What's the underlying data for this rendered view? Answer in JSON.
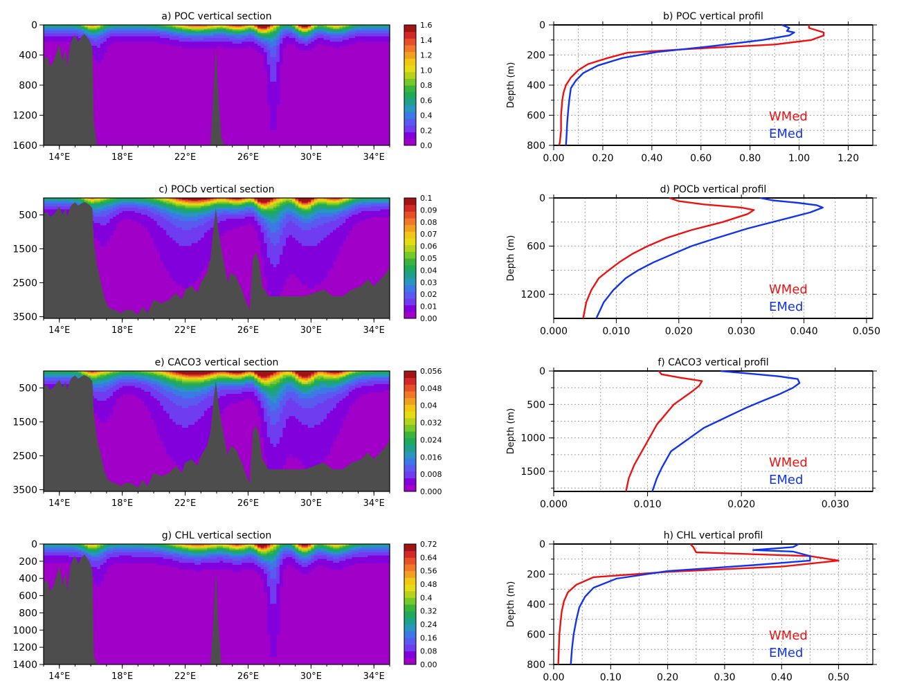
{
  "figure": {
    "colors": {
      "wmed": "#ee1111",
      "emed": "#1133ee",
      "land": "#4d4d4d",
      "grid": "#a0a0a0",
      "palette": [
        "#a000c8",
        "#8200dc",
        "#6f3cf0",
        "#5a5af0",
        "#3c78e6",
        "#2896be",
        "#1ea08c",
        "#1eaa5a",
        "#3cb43c",
        "#78c828",
        "#b4d21e",
        "#e6dc14",
        "#f0c814",
        "#f0a01e",
        "#f07828",
        "#e65028",
        "#d22828",
        "#a01414"
      ]
    }
  },
  "chart_data": [
    {
      "id": "a",
      "type": "heatmap",
      "title": "a) POC vertical section",
      "x_ticks": [
        "14°E",
        "18°E",
        "22°E",
        "26°E",
        "30°E",
        "34°E"
      ],
      "x_tick_values": [
        14,
        18,
        22,
        26,
        30,
        34
      ],
      "xlim": [
        13,
        35
      ],
      "y_ticks": [
        "0",
        "400",
        "800",
        "1200",
        "1600"
      ],
      "y_tick_values": [
        0,
        400,
        800,
        1200,
        1600
      ],
      "ylim": [
        1600,
        0
      ],
      "colorbar_ticks": [
        "1.6",
        "1.4",
        "1.2",
        "1.0",
        "0.8",
        "0.6",
        "0.4",
        "0.2",
        "0.0"
      ],
      "colorbar_range": [
        0,
        1.6
      ],
      "surface_max": 1.6
    },
    {
      "id": "b",
      "type": "line",
      "title": "b) POC vertical profil",
      "ylabel": "Depth (m)",
      "x_ticks": [
        "0.00",
        "0.20",
        "0.40",
        "0.60",
        "0.80",
        "1.00",
        "1.20"
      ],
      "x_tick_values": [
        0,
        0.2,
        0.4,
        0.6,
        0.8,
        1.0,
        1.2
      ],
      "xlim": [
        0,
        1.3
      ],
      "y_ticks": [
        "0",
        "200",
        "400",
        "600",
        "800"
      ],
      "y_tick_values": [
        0,
        200,
        400,
        600,
        800
      ],
      "ylim": [
        800,
        0
      ],
      "legend": [
        "WMed",
        "EMed"
      ],
      "series": [
        {
          "name": "WMed",
          "x": [
            1.04,
            1.04,
            1.1,
            1.1,
            1.05,
            0.9,
            0.55,
            0.3,
            0.22,
            0.14,
            0.1,
            0.07,
            0.05,
            0.04,
            0.035,
            0.03,
            0.03,
            0.025,
            0.022
          ],
          "y": [
            0,
            20,
            50,
            70,
            100,
            130,
            160,
            185,
            220,
            260,
            300,
            350,
            400,
            450,
            500,
            600,
            700,
            780,
            800
          ]
        },
        {
          "name": "EMed",
          "x": [
            0.93,
            0.96,
            0.95,
            0.98,
            0.96,
            0.85,
            0.65,
            0.42,
            0.28,
            0.18,
            0.12,
            0.09,
            0.07,
            0.065,
            0.06,
            0.055,
            0.052,
            0.05
          ],
          "y": [
            0,
            20,
            40,
            50,
            70,
            100,
            140,
            180,
            220,
            270,
            320,
            370,
            420,
            480,
            550,
            650,
            750,
            800
          ]
        }
      ]
    },
    {
      "id": "c",
      "type": "heatmap",
      "title": "c) POCb vertical section",
      "x_ticks": [
        "14°E",
        "18°E",
        "22°E",
        "26°E",
        "30°E",
        "34°E"
      ],
      "x_tick_values": [
        14,
        18,
        22,
        26,
        30,
        34
      ],
      "xlim": [
        13,
        35
      ],
      "y_ticks": [
        "500",
        "1500",
        "2500",
        "3500"
      ],
      "y_tick_values": [
        500,
        1500,
        2500,
        3500
      ],
      "ylim": [
        3550,
        0
      ],
      "colorbar_ticks": [
        "0.1",
        "0.09",
        "0.08",
        "0.07",
        "0.06",
        "0.05",
        "0.04",
        "0.03",
        "0.02",
        "0.01",
        "0.00"
      ],
      "colorbar_range": [
        0,
        0.1
      ],
      "surface_max": 0.1
    },
    {
      "id": "d",
      "type": "line",
      "title": "d) POCb vertical profil",
      "ylabel": "Depth (m)",
      "x_ticks": [
        "0.000",
        "0.010",
        "0.020",
        "0.030",
        "0.040",
        "0.050"
      ],
      "x_tick_values": [
        0,
        0.01,
        0.02,
        0.03,
        0.04,
        0.05
      ],
      "xlim": [
        0,
        0.051
      ],
      "y_ticks": [
        "0",
        "600",
        "1200"
      ],
      "y_tick_values": [
        0,
        600,
        1200
      ],
      "ylim": [
        1500,
        0
      ],
      "legend": [
        "WMed",
        "EMed"
      ],
      "series": [
        {
          "name": "WMed",
          "x": [
            0.0185,
            0.02,
            0.024,
            0.03,
            0.032,
            0.031,
            0.027,
            0.022,
            0.018,
            0.015,
            0.0125,
            0.0105,
            0.0088,
            0.0072,
            0.006,
            0.0052,
            0.0047
          ],
          "y": [
            0,
            40,
            80,
            120,
            150,
            200,
            300,
            400,
            500,
            600,
            700,
            800,
            900,
            1000,
            1150,
            1300,
            1500
          ]
        },
        {
          "name": "EMed",
          "x": [
            0.033,
            0.035,
            0.039,
            0.042,
            0.043,
            0.041,
            0.036,
            0.031,
            0.026,
            0.022,
            0.019,
            0.016,
            0.0135,
            0.0115,
            0.0095,
            0.008,
            0.0068
          ],
          "y": [
            0,
            30,
            60,
            90,
            120,
            180,
            280,
            380,
            500,
            600,
            700,
            800,
            900,
            1000,
            1150,
            1300,
            1500
          ]
        }
      ]
    },
    {
      "id": "e",
      "type": "heatmap",
      "title": "e) CACO3  vertical section",
      "x_ticks": [
        "14°E",
        "18°E",
        "22°E",
        "26°E",
        "30°E",
        "34°E"
      ],
      "x_tick_values": [
        14,
        18,
        22,
        26,
        30,
        34
      ],
      "xlim": [
        13,
        35
      ],
      "y_ticks": [
        "500",
        "1500",
        "2500",
        "3500"
      ],
      "y_tick_values": [
        500,
        1500,
        2500,
        3500
      ],
      "ylim": [
        3550,
        0
      ],
      "colorbar_ticks": [
        "0.056",
        "0.048",
        "0.04",
        "0.032",
        "0.024",
        "0.016",
        "0.008",
        "0.000"
      ],
      "colorbar_range": [
        0,
        0.056
      ],
      "surface_max": 0.056
    },
    {
      "id": "f",
      "type": "line",
      "title": "f) CACO3 vertical profil",
      "ylabel": "Depth (m)",
      "x_ticks": [
        "0.000",
        "0.010",
        "0.020",
        "0.030"
      ],
      "x_tick_values": [
        0,
        0.01,
        0.02,
        0.03
      ],
      "xlim": [
        0,
        0.034
      ],
      "y_ticks": [
        "0",
        "500",
        "1000",
        "1500"
      ],
      "y_tick_values": [
        0,
        500,
        1000,
        1500
      ],
      "ylim": [
        1800,
        0
      ],
      "legend": [
        "WMed",
        "EMed"
      ],
      "series": [
        {
          "name": "WMed",
          "x": [
            0.0112,
            0.0115,
            0.0135,
            0.0158,
            0.0155,
            0.0148,
            0.0138,
            0.0128,
            0.0122,
            0.0116,
            0.011,
            0.0104,
            0.0098,
            0.0092,
            0.0086,
            0.008,
            0.0077
          ],
          "y": [
            0,
            50,
            100,
            150,
            220,
            300,
            400,
            500,
            600,
            700,
            800,
            950,
            1100,
            1250,
            1400,
            1600,
            1800
          ]
        },
        {
          "name": "EMed",
          "x": [
            0.0178,
            0.021,
            0.024,
            0.026,
            0.0262,
            0.0255,
            0.024,
            0.0222,
            0.0205,
            0.019,
            0.0175,
            0.016,
            0.0145,
            0.0125,
            0.0115,
            0.011,
            0.0105
          ],
          "y": [
            0,
            40,
            80,
            120,
            180,
            250,
            350,
            450,
            550,
            650,
            750,
            850,
            1000,
            1200,
            1450,
            1600,
            1800
          ]
        }
      ]
    },
    {
      "id": "g",
      "type": "heatmap",
      "title": "g) CHL vertical section",
      "x_ticks": [
        "14°E",
        "18°E",
        "22°E",
        "26°E",
        "30°E",
        "34°E"
      ],
      "x_tick_values": [
        14,
        18,
        22,
        26,
        30,
        34
      ],
      "xlim": [
        13,
        35
      ],
      "y_ticks": [
        "0",
        "200",
        "400",
        "600",
        "800",
        "1000",
        "1200",
        "1400"
      ],
      "y_tick_values": [
        0,
        200,
        400,
        600,
        800,
        1000,
        1200,
        1400
      ],
      "ylim": [
        1400,
        0
      ],
      "colorbar_ticks": [
        "0.72",
        "0.64",
        "0.56",
        "0.48",
        "0.4",
        "0.32",
        "0.24",
        "0.16",
        "0.08",
        "0.00"
      ],
      "colorbar_range": [
        0,
        0.72
      ],
      "surface_max": 0.72
    },
    {
      "id": "h",
      "type": "line",
      "title": "h) CHL vertical profil",
      "ylabel": "Depth (m)",
      "x_ticks": [
        "0.00",
        "0.10",
        "0.20",
        "0.30",
        "0.40",
        "0.50"
      ],
      "x_tick_values": [
        0,
        0.1,
        0.2,
        0.3,
        0.4,
        0.5
      ],
      "xlim": [
        0,
        0.56
      ],
      "y_ticks": [
        "0",
        "200",
        "400",
        "600",
        "800"
      ],
      "y_tick_values": [
        0,
        200,
        400,
        600,
        800
      ],
      "ylim": [
        800,
        0
      ],
      "legend": [
        "WMed",
        "EMed"
      ],
      "series": [
        {
          "name": "WMed",
          "x": [
            0.24,
            0.245,
            0.25,
            0.45,
            0.5,
            0.4,
            0.2,
            0.07,
            0.04,
            0.025,
            0.018,
            0.014,
            0.012,
            0.01,
            0.009,
            0.008
          ],
          "y": [
            0,
            20,
            55,
            80,
            110,
            150,
            185,
            220,
            270,
            320,
            380,
            450,
            520,
            600,
            700,
            800
          ]
        },
        {
          "name": "EMed",
          "x": [
            0.43,
            0.42,
            0.35,
            0.42,
            0.45,
            0.45,
            0.35,
            0.2,
            0.11,
            0.07,
            0.055,
            0.045,
            0.04,
            0.035,
            0.032,
            0.03
          ],
          "y": [
            0,
            20,
            40,
            50,
            80,
            110,
            140,
            180,
            230,
            290,
            350,
            420,
            500,
            600,
            700,
            800
          ]
        }
      ]
    }
  ]
}
